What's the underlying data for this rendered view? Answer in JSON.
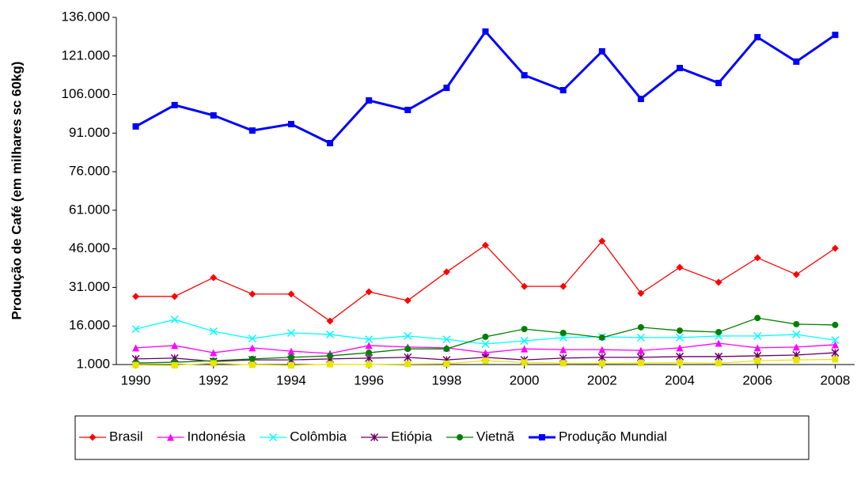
{
  "chart_data": {
    "type": "line",
    "y_label": "Produção de Café (em milhares sc 60kg)",
    "x": [
      1990,
      1991,
      1992,
      1993,
      1994,
      1995,
      1996,
      1997,
      1998,
      1999,
      2000,
      2001,
      2002,
      2003,
      2004,
      2005,
      2006,
      2007,
      2008
    ],
    "xlim": [
      1989.5,
      2008.5
    ],
    "xticks": [
      1990,
      1992,
      1994,
      1996,
      1998,
      2000,
      2002,
      2004,
      2006,
      2008
    ],
    "ylim": [
      1000,
      136000
    ],
    "yticks": [
      {
        "value": 1000,
        "label": "1.000"
      },
      {
        "value": 16000,
        "label": "16.000"
      },
      {
        "value": 31000,
        "label": "31.000"
      },
      {
        "value": 46000,
        "label": "46.000"
      },
      {
        "value": 61000,
        "label": "61.000"
      },
      {
        "value": 76000,
        "label": "76.000"
      },
      {
        "value": 91000,
        "label": "91.000"
      },
      {
        "value": 106000,
        "label": "106.000"
      },
      {
        "value": 121000,
        "label": "121.000"
      },
      {
        "value": 136000,
        "label": "136.000"
      }
    ],
    "grid": false,
    "legend": "bottom",
    "series": [
      {
        "name": "Brasil",
        "color": "#ff0000",
        "marker": "diamond",
        "values": [
          27500,
          27500,
          34800,
          28400,
          28400,
          17900,
          29300,
          25900,
          37000,
          47400,
          31400,
          31400,
          49000,
          28700,
          38800,
          33000,
          42500,
          36000,
          46200
        ]
      },
      {
        "name": "Indonésia",
        "color": "#ff00ff",
        "marker": "triangle",
        "values": [
          7500,
          8400,
          5600,
          7500,
          6200,
          5300,
          8400,
          7800,
          7500,
          5600,
          7100,
          6800,
          6800,
          6500,
          7500,
          9300,
          7500,
          7800,
          8700
        ]
      },
      {
        "name": "Colômbia",
        "color": "#00ffff",
        "marker": "x",
        "values": [
          14800,
          18500,
          13900,
          11100,
          13300,
          12700,
          10800,
          12100,
          10800,
          9000,
          10200,
          11500,
          11800,
          11500,
          11500,
          12100,
          12100,
          12700,
          10500
        ]
      },
      {
        "name": "Etiópia",
        "color": "#660066",
        "marker": "star",
        "values": [
          3200,
          3500,
          2200,
          2800,
          2800,
          3200,
          3500,
          3800,
          2800,
          3800,
          2800,
          3500,
          3800,
          3800,
          4100,
          4100,
          4400,
          4700,
          5600
        ]
      },
      {
        "name": "Vietnã",
        "color": "#008000",
        "marker": "circle",
        "values": [
          1600,
          1900,
          2500,
          3200,
          3800,
          4400,
          5600,
          7100,
          7100,
          11800,
          14800,
          13300,
          11500,
          15500,
          14200,
          13600,
          19100,
          16700,
          16400
        ]
      },
      {
        "name": "Produção Mundial",
        "color": "#0000ff",
        "marker": "square",
        "width": 3,
        "values": [
          93600,
          101900,
          97900,
          92000,
          94500,
          87100,
          103700,
          100000,
          108600,
          130500,
          113500,
          107700,
          122800,
          104300,
          116300,
          110500,
          128300,
          118800,
          129200
        ]
      },
      {
        "color": "#e6e600",
        "marker": "square",
        "values": [
          800,
          700,
          1500,
          900,
          700,
          1100,
          1000,
          1200,
          1300,
          2500,
          1800,
          1500,
          1400,
          1600,
          1700,
          1500,
          2500,
          2800,
          3000
        ]
      }
    ]
  }
}
